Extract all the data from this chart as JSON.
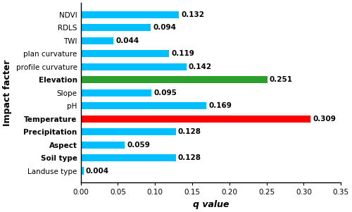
{
  "categories": [
    "Landuse type",
    "Soil type",
    "Aspect",
    "Precipitation",
    "Temperature",
    "pH",
    "Slope",
    "Elevation",
    "profile curvature",
    "plan curvature",
    "TWI",
    "RDLS",
    "NDVI"
  ],
  "values": [
    0.004,
    0.128,
    0.059,
    0.128,
    0.309,
    0.169,
    0.095,
    0.251,
    0.142,
    0.119,
    0.044,
    0.094,
    0.132
  ],
  "colors": [
    "#00BFFF",
    "#00BFFF",
    "#00BFFF",
    "#00BFFF",
    "#FF0000",
    "#00BFFF",
    "#00BFFF",
    "#2CA02C",
    "#00BFFF",
    "#00BFFF",
    "#00BFFF",
    "#00BFFF",
    "#00BFFF"
  ],
  "bold_labels": [
    "Temperature",
    "Elevation",
    "Precipitation",
    "Aspect",
    "Soil type"
  ],
  "xlabel": "q value",
  "ylabel": "Impact facter",
  "xlim": [
    0,
    0.35
  ],
  "xticks": [
    0.0,
    0.05,
    0.1,
    0.15,
    0.2,
    0.25,
    0.3,
    0.35
  ],
  "bar_height": 0.55,
  "figsize": [
    5.0,
    3.01
  ],
  "dpi": 100,
  "axis_label_fontsize": 9,
  "tick_fontsize": 7.5,
  "value_fontsize": 7.5,
  "ylabel_fontsize": 9
}
